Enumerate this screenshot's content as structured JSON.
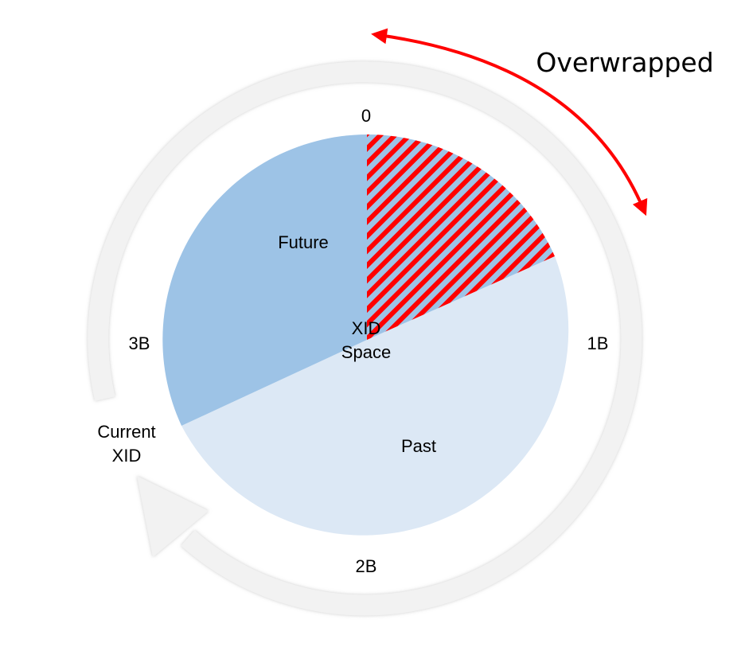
{
  "diagram": {
    "center_label": [
      "XID",
      "Space"
    ],
    "overwrap_label": "Overwrapped",
    "current_label": [
      "Current",
      "XID"
    ],
    "ticks": {
      "top": "0",
      "right": "1B",
      "bottom": "2B",
      "left": "3B"
    },
    "sectors": {
      "overwrapped": {
        "label": "",
        "fill": "#9dc3e6",
        "hatch_color": "#ff0000"
      },
      "past": {
        "label": "Past",
        "fill": "#dce8f5"
      },
      "future": {
        "label": "Future",
        "fill": "#9dc3e6"
      }
    },
    "colors": {
      "ring": "#f2f2f2",
      "ring_edge": "#d9d9d9",
      "arrow": "#ff0000"
    }
  }
}
